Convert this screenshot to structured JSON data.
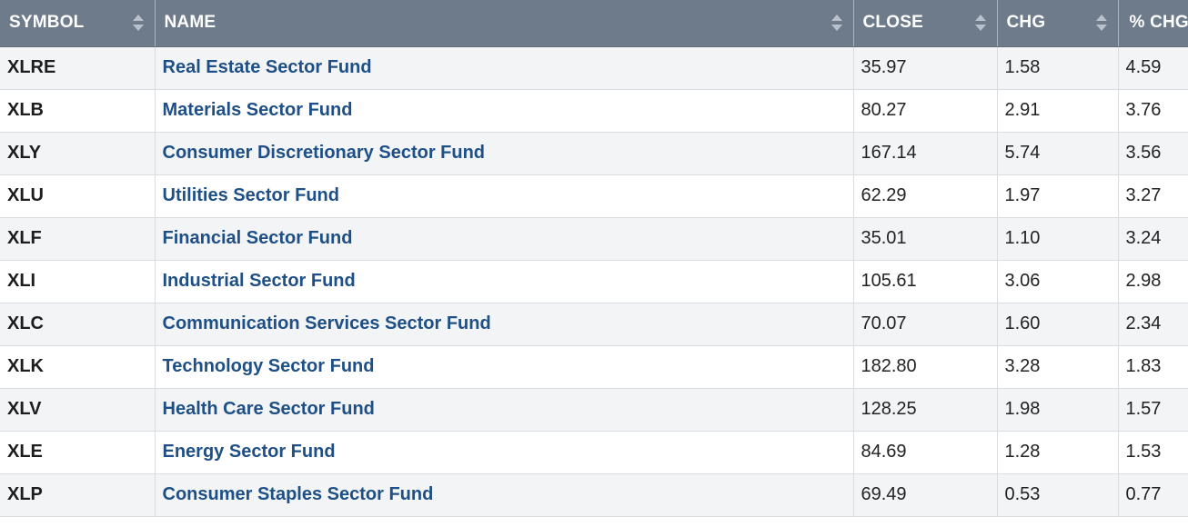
{
  "columns": [
    {
      "label": "SYMBOL"
    },
    {
      "label": "NAME"
    },
    {
      "label": "CLOSE"
    },
    {
      "label": "CHG"
    },
    {
      "label": "% CHG"
    }
  ],
  "icons": {
    "sort": "sort-arrows-icon"
  },
  "colors": {
    "header_bg": "#6e7b8b",
    "link": "#1e4f86",
    "row_alt": "#f2f4f5"
  },
  "rows": [
    {
      "symbol": "XLRE",
      "name": "Real Estate Sector Fund",
      "close": "35.97",
      "chg": "1.58",
      "pct_chg": "4.59"
    },
    {
      "symbol": "XLB",
      "name": "Materials Sector Fund",
      "close": "80.27",
      "chg": "2.91",
      "pct_chg": "3.76"
    },
    {
      "symbol": "XLY",
      "name": "Consumer Discretionary Sector Fund",
      "close": "167.14",
      "chg": "5.74",
      "pct_chg": "3.56"
    },
    {
      "symbol": "XLU",
      "name": "Utilities Sector Fund",
      "close": "62.29",
      "chg": "1.97",
      "pct_chg": "3.27"
    },
    {
      "symbol": "XLF",
      "name": "Financial Sector Fund",
      "close": "35.01",
      "chg": "1.10",
      "pct_chg": "3.24"
    },
    {
      "symbol": "XLI",
      "name": "Industrial Sector Fund",
      "close": "105.61",
      "chg": "3.06",
      "pct_chg": "2.98"
    },
    {
      "symbol": "XLC",
      "name": "Communication Services Sector Fund",
      "close": "70.07",
      "chg": "1.60",
      "pct_chg": "2.34"
    },
    {
      "symbol": "XLK",
      "name": "Technology Sector Fund",
      "close": "182.80",
      "chg": "3.28",
      "pct_chg": "1.83"
    },
    {
      "symbol": "XLV",
      "name": "Health Care Sector Fund",
      "close": "128.25",
      "chg": "1.98",
      "pct_chg": "1.57"
    },
    {
      "symbol": "XLE",
      "name": "Energy Sector Fund",
      "close": "84.69",
      "chg": "1.28",
      "pct_chg": "1.53"
    },
    {
      "symbol": "XLP",
      "name": "Consumer Staples Sector Fund",
      "close": "69.49",
      "chg": "0.53",
      "pct_chg": "0.77"
    }
  ]
}
